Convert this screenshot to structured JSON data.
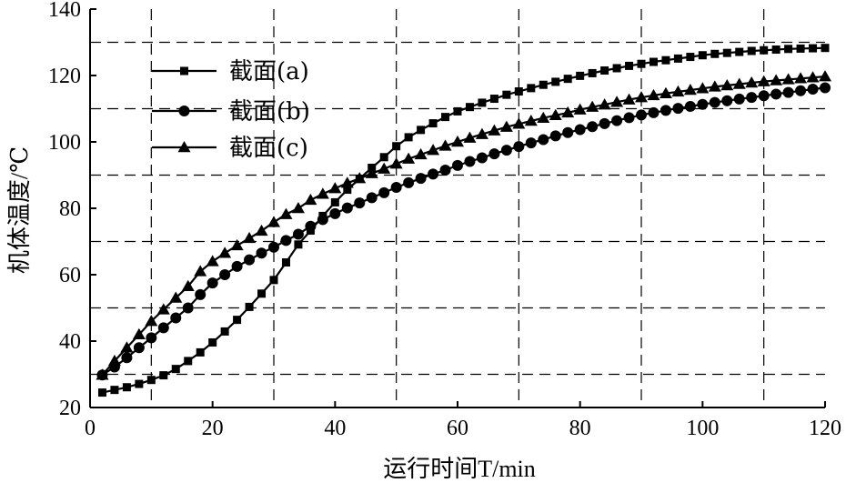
{
  "chart_data": {
    "type": "line",
    "xlabel": "运行时间T/min",
    "ylabel": "机体温度/℃",
    "xlim": [
      0,
      120
    ],
    "ylim": [
      20,
      140
    ],
    "xticks": [
      0,
      20,
      40,
      60,
      80,
      100,
      120
    ],
    "yticks": [
      20,
      40,
      60,
      80,
      100,
      120,
      140
    ],
    "grid": true,
    "vertical_grid": [
      10,
      30,
      50,
      70,
      90,
      110
    ],
    "horizontal_grid": [
      30,
      50,
      70,
      90,
      110,
      130
    ],
    "legend_position": "top-left",
    "series": [
      {
        "name": "截面(a)",
        "marker": "square",
        "x": [
          2,
          4,
          6,
          8,
          10,
          12,
          14,
          16,
          18,
          20,
          22,
          24,
          26,
          28,
          30,
          32,
          34,
          36,
          38,
          40,
          42,
          44,
          46,
          48,
          50,
          52,
          54,
          56,
          58,
          60,
          62,
          64,
          66,
          68,
          70,
          72,
          74,
          76,
          78,
          80,
          82,
          84,
          86,
          88,
          90,
          92,
          94,
          96,
          98,
          100,
          102,
          104,
          106,
          108,
          110,
          112,
          114,
          116,
          118,
          120
        ],
        "values": [
          24.5,
          25.3,
          26.1,
          27.1,
          28.3,
          29.7,
          31.6,
          34.0,
          36.6,
          39.6,
          42.9,
          46.4,
          50.3,
          54.3,
          58.4,
          63.7,
          69.1,
          73.3,
          77.7,
          81.8,
          85.6,
          88.9,
          92.2,
          95.4,
          98.7,
          101.4,
          103.6,
          105.6,
          107.5,
          109.2,
          110.5,
          111.8,
          113.0,
          114.2,
          115.2,
          116.2,
          117.2,
          118.1,
          119.0,
          119.9,
          120.7,
          121.5,
          122.2,
          122.9,
          123.5,
          124.1,
          124.6,
          125.1,
          125.6,
          126.1,
          126.5,
          126.8,
          127.1,
          127.4,
          127.6,
          127.8,
          128.0,
          128.1,
          128.2,
          128.3
        ]
      },
      {
        "name": "截面(b)",
        "marker": "circle",
        "x": [
          2,
          4,
          6,
          8,
          10,
          12,
          14,
          16,
          18,
          20,
          22,
          24,
          26,
          28,
          30,
          32,
          34,
          36,
          38,
          40,
          42,
          44,
          46,
          48,
          50,
          52,
          54,
          56,
          58,
          60,
          62,
          64,
          66,
          68,
          70,
          72,
          74,
          76,
          78,
          80,
          82,
          84,
          86,
          88,
          90,
          92,
          94,
          96,
          98,
          100,
          102,
          104,
          106,
          108,
          110,
          112,
          114,
          116,
          118,
          120
        ],
        "values": [
          29.8,
          32.2,
          35.0,
          38.0,
          41.0,
          44.0,
          47.0,
          50.0,
          54.0,
          57.5,
          60.0,
          62.5,
          64.5,
          66.5,
          68.3,
          70.3,
          72.2,
          74.6,
          76.6,
          78.4,
          80.1,
          81.6,
          83.2,
          84.7,
          86.3,
          87.7,
          89.0,
          90.3,
          91.5,
          92.9,
          94.1,
          95.2,
          96.4,
          97.5,
          98.6,
          99.7,
          100.7,
          101.8,
          102.8,
          103.7,
          104.6,
          105.5,
          106.4,
          107.3,
          108.1,
          108.8,
          109.5,
          110.1,
          110.7,
          111.3,
          111.9,
          112.4,
          112.9,
          113.4,
          113.9,
          114.4,
          114.9,
          115.4,
          115.9,
          116.3
        ]
      },
      {
        "name": "截面(c)",
        "marker": "triangle",
        "x": [
          2,
          4,
          6,
          8,
          10,
          12,
          14,
          16,
          18,
          20,
          22,
          24,
          26,
          28,
          30,
          32,
          34,
          36,
          38,
          40,
          42,
          44,
          46,
          48,
          50,
          52,
          54,
          56,
          58,
          60,
          62,
          64,
          66,
          68,
          70,
          72,
          74,
          76,
          78,
          80,
          82,
          84,
          86,
          88,
          90,
          92,
          94,
          96,
          98,
          100,
          102,
          104,
          106,
          108,
          110,
          112,
          114,
          116,
          118,
          120
        ],
        "values": [
          29.8,
          34.0,
          38.0,
          42.0,
          46.0,
          49.5,
          53.0,
          56.5,
          61.0,
          64.0,
          66.5,
          68.8,
          71.0,
          73.2,
          75.8,
          78.2,
          80.0,
          82.5,
          84.3,
          86.0,
          87.6,
          89.0,
          90.5,
          91.9,
          93.4,
          94.9,
          96.2,
          97.5,
          98.8,
          100.0,
          101.2,
          102.3,
          103.4,
          104.5,
          105.4,
          106.3,
          107.2,
          108.0,
          108.8,
          109.7,
          110.5,
          111.2,
          112.0,
          112.7,
          113.4,
          114.0,
          114.6,
          115.1,
          115.6,
          116.1,
          116.6,
          117.0,
          117.4,
          117.8,
          118.2,
          118.5,
          118.8,
          119.1,
          119.4,
          119.7
        ]
      }
    ]
  }
}
